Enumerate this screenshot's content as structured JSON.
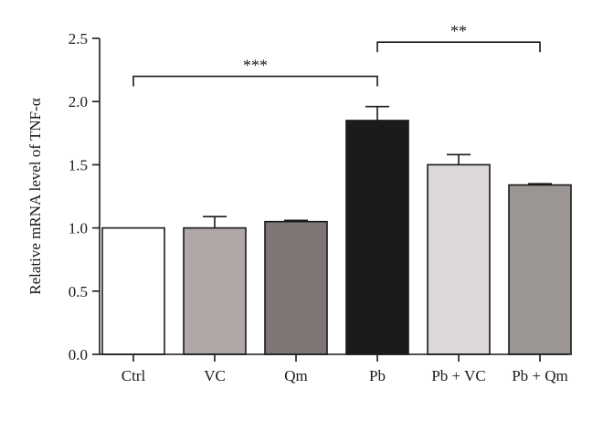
{
  "chart_data": {
    "type": "bar",
    "title": "",
    "xlabel": "",
    "ylabel": "Relative mRNA level of TNF-α",
    "ylim": [
      0,
      2.5
    ],
    "yticks": [
      "0.0",
      "0.5",
      "1.0",
      "1.5",
      "2.0",
      "2.5"
    ],
    "categories": [
      "Ctrl",
      "VC",
      "Qm",
      "Pb",
      "Pb + VC",
      "Pb + Qm"
    ],
    "values": [
      1.0,
      1.0,
      1.05,
      1.85,
      1.5,
      1.34
    ],
    "errors": [
      0.0,
      0.09,
      0.01,
      0.11,
      0.08,
      0.01
    ],
    "bar_colors": [
      "#ffffff",
      "#b0a7a7",
      "#7f7776",
      "#1b1b1b",
      "#dcd7d8",
      "#9b9594"
    ],
    "grid": false,
    "legend": "none",
    "significance": [
      {
        "from": 0,
        "to": 3,
        "label": "***",
        "y": 2.2
      },
      {
        "from": 3,
        "to": 5,
        "label": "**",
        "y": 2.47
      }
    ]
  },
  "colors": {
    "axis": "#1a1a1a",
    "bar_stroke": "#1a1a1a"
  }
}
